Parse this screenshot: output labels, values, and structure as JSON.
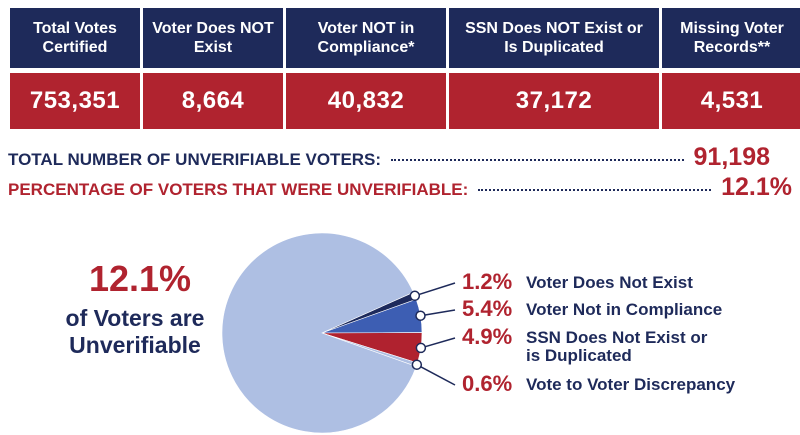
{
  "table": {
    "headers": [
      "Total Votes Certified",
      "Voter Does NOT Exist",
      "Voter NOT in Compliance*",
      "SSN Does NOT Exist or Is Duplicated",
      "Missing Voter Records**"
    ],
    "values": [
      "753,351",
      "8,664",
      "40,832",
      "37,172",
      "4,531"
    ]
  },
  "summary": [
    {
      "label": "TOTAL NUMBER OF UNVERIFIABLE VOTERS:",
      "value": "91,198"
    },
    {
      "label": "PERCENTAGE OF VOTERS THAT WERE UNVERIFIABLE:",
      "value": "12.1%"
    }
  ],
  "callout": {
    "value": "12.1%",
    "text": "of Voters are Unverifiable"
  },
  "chart_data": {
    "type": "pie",
    "categories": [
      "Voter Does Not Exist",
      "Voter Not in Compliance",
      "SSN Does Not Exist or is Duplicated",
      "Vote to Voter Discrepancy",
      null
    ],
    "values": [
      1.2,
      5.4,
      4.9,
      0.6,
      87.9
    ],
    "value_labels": [
      "1.2%",
      "5.4%",
      "4.9%",
      "0.6%",
      null
    ],
    "colors": [
      "#1d2a5c",
      "#3d5eb3",
      "#b0222f",
      "#aebfe3",
      "#aebfe3"
    ]
  }
}
